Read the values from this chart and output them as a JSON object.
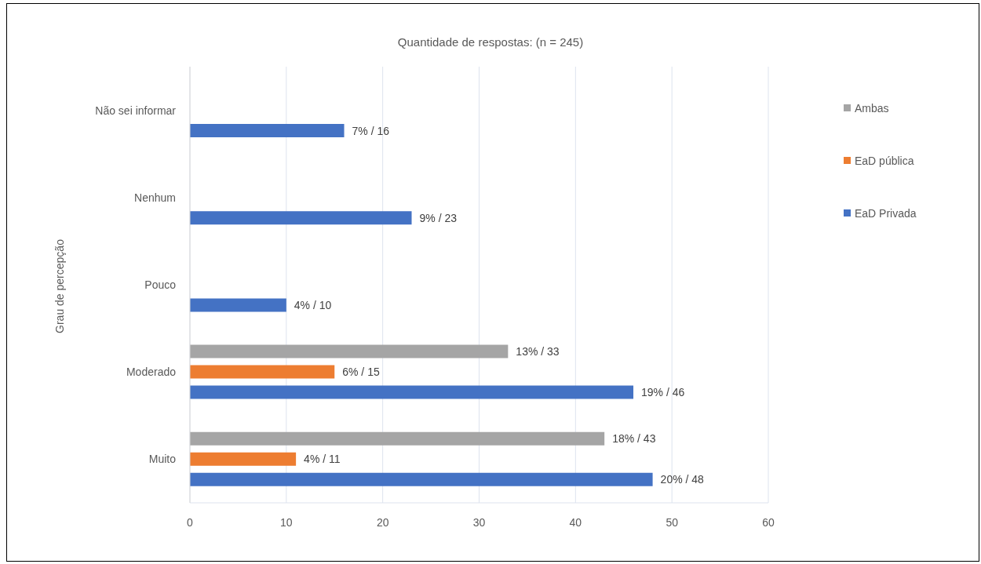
{
  "chart_data": {
    "type": "bar",
    "orientation": "horizontal",
    "title": "Quantidade de respostas: (n = 245)",
    "ylabel": "Grau de percepção",
    "categories": [
      "Não sei informar",
      "Nenhum",
      "Pouco",
      "Moderado",
      "Muito"
    ],
    "series": [
      {
        "name": "Ambas",
        "color": "#a5a5a5",
        "values": [
          null,
          null,
          null,
          33,
          43
        ],
        "value_labels": [
          null,
          null,
          null,
          "13% / 33",
          "18% / 43"
        ]
      },
      {
        "name": "EaD pública",
        "color": "#ed7d31",
        "values": [
          null,
          null,
          null,
          15,
          11
        ],
        "value_labels": [
          null,
          null,
          null,
          "6% / 15",
          "4% / 11"
        ]
      },
      {
        "name": "EaD Privada",
        "color": "#4472c4",
        "values": [
          16,
          23,
          10,
          46,
          48
        ],
        "value_labels": [
          "7% / 16",
          "9% / 23",
          "4% / 10",
          "19% / 46",
          "20% / 48"
        ]
      }
    ],
    "xlim": [
      0,
      60
    ],
    "xticks": [
      0,
      10,
      20,
      30,
      40,
      50,
      60
    ],
    "grid": "x",
    "legend": "top right"
  }
}
